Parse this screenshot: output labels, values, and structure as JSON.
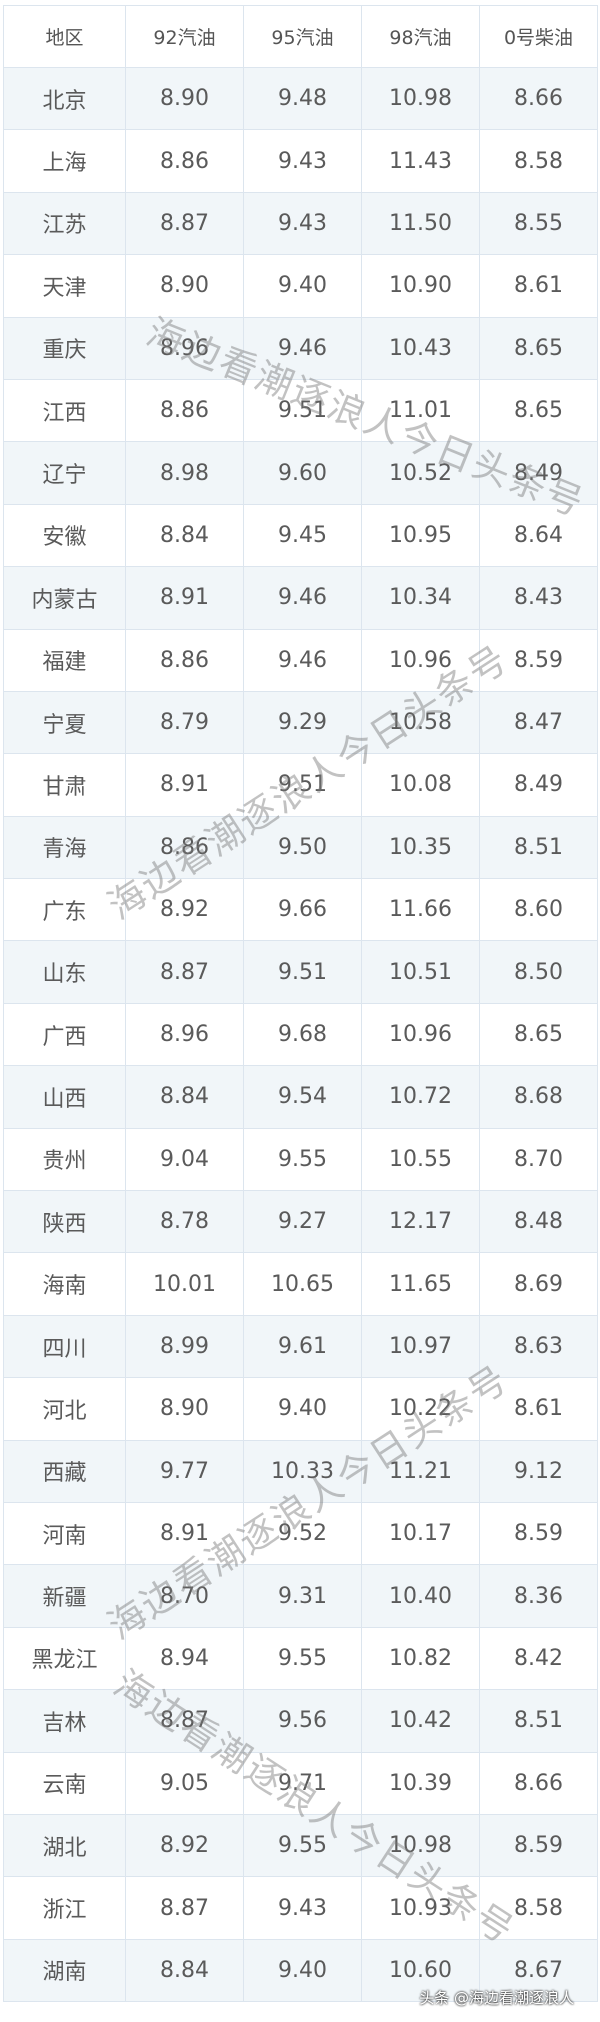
{
  "table": {
    "headers": [
      "地区",
      "92汽油",
      "95汽油",
      "98汽油",
      "0号柴油"
    ],
    "rows": [
      [
        "北京",
        "8.90",
        "9.48",
        "10.98",
        "8.66"
      ],
      [
        "上海",
        "8.86",
        "9.43",
        "11.43",
        "8.58"
      ],
      [
        "江苏",
        "8.87",
        "9.43",
        "11.50",
        "8.55"
      ],
      [
        "天津",
        "8.90",
        "9.40",
        "10.90",
        "8.61"
      ],
      [
        "重庆",
        "8.96",
        "9.46",
        "10.43",
        "8.65"
      ],
      [
        "江西",
        "8.86",
        "9.51",
        "11.01",
        "8.65"
      ],
      [
        "辽宁",
        "8.98",
        "9.60",
        "10.52",
        "8.49"
      ],
      [
        "安徽",
        "8.84",
        "9.45",
        "10.95",
        "8.64"
      ],
      [
        "内蒙古",
        "8.91",
        "9.46",
        "10.34",
        "8.43"
      ],
      [
        "福建",
        "8.86",
        "9.46",
        "10.96",
        "8.59"
      ],
      [
        "宁夏",
        "8.79",
        "9.29",
        "10.58",
        "8.47"
      ],
      [
        "甘肃",
        "8.91",
        "9.51",
        "10.08",
        "8.49"
      ],
      [
        "青海",
        "8.86",
        "9.50",
        "10.35",
        "8.51"
      ],
      [
        "广东",
        "8.92",
        "9.66",
        "11.66",
        "8.60"
      ],
      [
        "山东",
        "8.87",
        "9.51",
        "10.51",
        "8.50"
      ],
      [
        "广西",
        "8.96",
        "9.68",
        "10.96",
        "8.65"
      ],
      [
        "山西",
        "8.84",
        "9.54",
        "10.72",
        "8.68"
      ],
      [
        "贵州",
        "9.04",
        "9.55",
        "10.55",
        "8.70"
      ],
      [
        "陕西",
        "8.78",
        "9.27",
        "12.17",
        "8.48"
      ],
      [
        "海南",
        "10.01",
        "10.65",
        "11.65",
        "8.69"
      ],
      [
        "四川",
        "8.99",
        "9.61",
        "10.97",
        "8.63"
      ],
      [
        "河北",
        "8.90",
        "9.40",
        "10.22",
        "8.61"
      ],
      [
        "西藏",
        "9.77",
        "10.33",
        "11.21",
        "9.12"
      ],
      [
        "河南",
        "8.91",
        "9.52",
        "10.17",
        "8.59"
      ],
      [
        "新疆",
        "8.70",
        "9.31",
        "10.40",
        "8.36"
      ],
      [
        "黑龙江",
        "8.94",
        "9.55",
        "10.82",
        "8.42"
      ],
      [
        "吉林",
        "8.87",
        "9.56",
        "10.42",
        "8.51"
      ],
      [
        "云南",
        "9.05",
        "9.71",
        "10.39",
        "8.66"
      ],
      [
        "湖北",
        "8.92",
        "9.55",
        "10.98",
        "8.59"
      ],
      [
        "浙江",
        "8.87",
        "9.43",
        "10.93",
        "8.58"
      ],
      [
        "湖南",
        "8.84",
        "9.40",
        "10.60",
        "8.67"
      ]
    ]
  },
  "watermark": "海边看潮逐浪人今日头条号",
  "footer": "头条 @海边看潮逐浪人"
}
